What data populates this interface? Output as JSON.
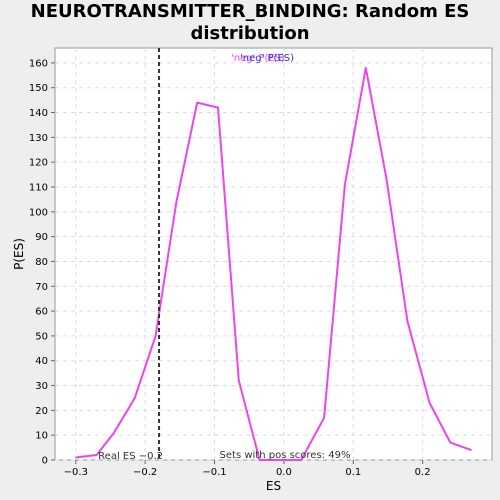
{
  "chart_data": {
    "type": "line",
    "title_line1": "NEUROTRANSMITTER_BINDING: Random ES",
    "title_line2": "distribution",
    "xlabel": "ES",
    "ylabel": "P(ES)",
    "xlim": [
      -0.33,
      0.3
    ],
    "ylim": [
      0,
      166
    ],
    "xticks": [
      -0.3,
      -0.2,
      -0.1,
      0.0,
      0.1,
      0.2
    ],
    "xtick_labels": [
      "−0.3",
      "−0.2",
      "−0.1",
      "0.0",
      "0.1",
      "0.2"
    ],
    "yticks": [
      0,
      10,
      20,
      30,
      40,
      50,
      60,
      70,
      80,
      90,
      100,
      110,
      120,
      130,
      140,
      150,
      160
    ],
    "grid": true,
    "legend": {
      "placement": "top-center",
      "entries": [
        {
          "label": "'neg' P(ES)",
          "color": "#ff44ff"
        },
        {
          "label": "'neg' P(ES)",
          "color": "#3333cc"
        }
      ]
    },
    "series": [
      {
        "color": "#ee44ee",
        "x": [
          -0.3,
          -0.27,
          -0.245,
          -0.215,
          -0.185,
          -0.155,
          -0.125,
          -0.095,
          -0.065,
          -0.035,
          -0.005,
          0.025,
          0.058,
          0.088,
          0.118,
          0.148,
          0.178,
          0.21,
          0.24,
          0.27
        ],
        "y": [
          1,
          2,
          11,
          25,
          50,
          104,
          144,
          142,
          32,
          0,
          0,
          0,
          17,
          111,
          158,
          113,
          56,
          23,
          7,
          4
        ]
      }
    ],
    "vline": {
      "x": -0.18,
      "label": "Real ES −0.2"
    },
    "annotation": "Sets with pos scores: 49%"
  }
}
